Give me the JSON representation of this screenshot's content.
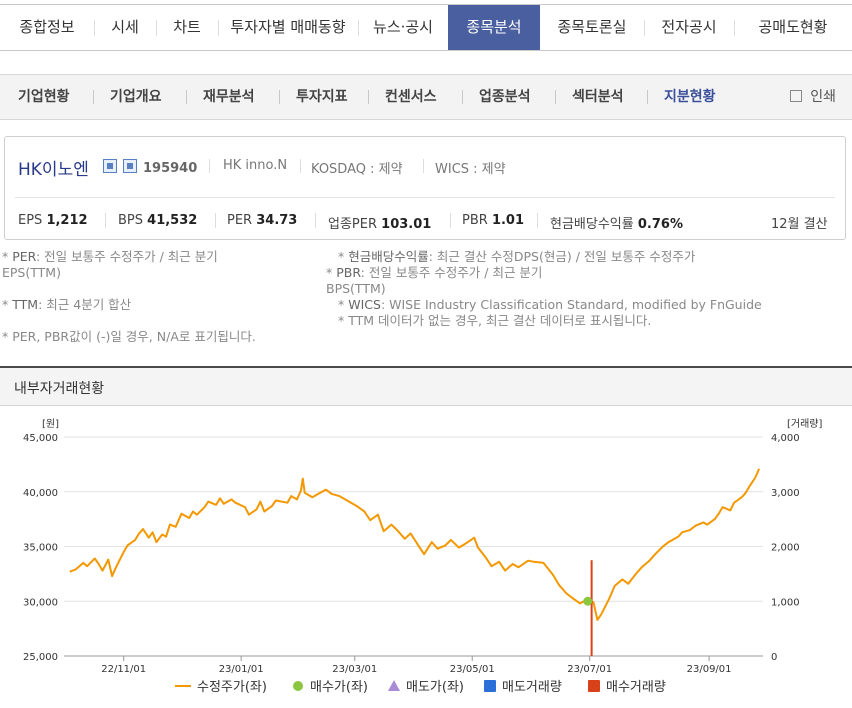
{
  "tabs": [
    {
      "label": "종합정보",
      "active": false
    },
    {
      "label": "시세",
      "active": false
    },
    {
      "label": "차트",
      "active": false
    },
    {
      "label": "투자자별 매매동향",
      "active": false
    },
    {
      "label": "뉴스·공시",
      "active": false
    },
    {
      "label": "종목분석",
      "active": true
    },
    {
      "label": "종목토론실",
      "active": false
    },
    {
      "label": "전자공시",
      "active": false
    },
    {
      "label": "공매도현황",
      "active": false
    }
  ],
  "subtabs": [
    {
      "label": "기업현황",
      "active": false
    },
    {
      "label": "기업개요",
      "active": false
    },
    {
      "label": "재무분석",
      "active": false
    },
    {
      "label": "투자지표",
      "active": false
    },
    {
      "label": "컨센서스",
      "active": false
    },
    {
      "label": "업종분석",
      "active": false
    },
    {
      "label": "섹터분석",
      "active": false
    },
    {
      "label": "지분현황",
      "active": true
    }
  ],
  "print_label": "인쇄",
  "company": {
    "name": "HK이노엔",
    "code": "195940",
    "eng": "HK inno.N",
    "market": "KOSDAQ : 제약",
    "wics": "WICS : 제약",
    "metrics": [
      {
        "label": "EPS",
        "value": "1,212"
      },
      {
        "label": "BPS",
        "value": "41,532"
      },
      {
        "label": "PER",
        "value": "34.73"
      },
      {
        "label": "업종PER",
        "value": "103.01"
      },
      {
        "label": "PBR",
        "value": "1.01"
      },
      {
        "label": "현금배당수익률",
        "value": "0.76%"
      }
    ],
    "fiscal": "12월 결산"
  },
  "notes": {
    "per_key": "PER",
    "per_text": ": 전일 보통주 수정주가 / 최근 분기",
    "per_text2": "EPS(TTM)",
    "div_key": "현금배당수익률",
    "div_text": ": 최근 결산 수정DPS(현금) / 전일 보통주 수정주가",
    "pbr_key": "PBR",
    "pbr_text": ": 전일 보통주 수정주가 / 최근 분기",
    "pbr_text2": "BPS(TTM)",
    "ttm_key": "TTM",
    "ttm_text": ": 최근 4분기 합산",
    "wics_key": "WICS",
    "wics_text": ": WISE Industry Classification Standard, modified by FnGuide",
    "ttm_note": "TTM 데이터가 없는 경우, 최근 결산 데이터로 표시됩니다.",
    "na_note": "PER, PBR값이 (-)일 경우, N/A로 표기됩니다."
  },
  "section_title": "내부자거래현황",
  "colors": {
    "price": "#f39800",
    "buy": "#8cc63f",
    "sell": "#a98bd6",
    "sellvol": "#2b70d8",
    "buyvol": "#d9411a",
    "accent": "#4a5f9f"
  },
  "chart_data": {
    "type": "line",
    "left_unit": "[원]",
    "right_unit": "[거래량]",
    "ylim": [
      25000,
      45000
    ],
    "y2lim": [
      0,
      4000
    ],
    "yticks": [
      "45,000",
      "40,000",
      "35,000",
      "30,000",
      "25,000"
    ],
    "y2ticks": [
      "4,000",
      "3,000",
      "2,000",
      "1,000",
      "0"
    ],
    "xticks": [
      "22/11/01",
      "23/01/01",
      "23/03/01",
      "23/05/01",
      "23/07/01",
      "23/09/01"
    ],
    "xrange": [
      "2022-10-01",
      "2023-09-29"
    ],
    "legend": [
      {
        "label": "수정주가(좌)",
        "kind": "line"
      },
      {
        "label": "매수가(좌)",
        "kind": "dot"
      },
      {
        "label": "매도가(좌)",
        "kind": "triangle"
      },
      {
        "label": "매도거래량",
        "kind": "square-blue"
      },
      {
        "label": "매수거래량",
        "kind": "square-red"
      }
    ],
    "series": [
      {
        "name": "수정주가(좌)",
        "points": [
          [
            "2022-10-04",
            32700
          ],
          [
            "2022-10-07",
            32900
          ],
          [
            "2022-10-11",
            33500
          ],
          [
            "2022-10-13",
            33200
          ],
          [
            "2022-10-17",
            33900
          ],
          [
            "2022-10-19",
            33400
          ],
          [
            "2022-10-21",
            32800
          ],
          [
            "2022-10-24",
            33800
          ],
          [
            "2022-10-26",
            32300
          ],
          [
            "2022-10-28",
            33100
          ],
          [
            "2022-11-01",
            34500
          ],
          [
            "2022-11-03",
            35100
          ],
          [
            "2022-11-07",
            35600
          ],
          [
            "2022-11-09",
            36200
          ],
          [
            "2022-11-11",
            36600
          ],
          [
            "2022-11-14",
            35800
          ],
          [
            "2022-11-16",
            36300
          ],
          [
            "2022-11-18",
            35400
          ],
          [
            "2022-11-21",
            36100
          ],
          [
            "2022-11-23",
            35900
          ],
          [
            "2022-11-25",
            37000
          ],
          [
            "2022-11-28",
            36800
          ],
          [
            "2022-12-01",
            38000
          ],
          [
            "2022-12-05",
            37600
          ],
          [
            "2022-12-07",
            38200
          ],
          [
            "2022-12-09",
            37900
          ],
          [
            "2022-12-13",
            38600
          ],
          [
            "2022-12-15",
            39100
          ],
          [
            "2022-12-19",
            38800
          ],
          [
            "2022-12-21",
            39400
          ],
          [
            "2022-12-23",
            38900
          ],
          [
            "2022-12-27",
            39300
          ],
          [
            "2022-12-29",
            39000
          ],
          [
            "2023-01-03",
            38600
          ],
          [
            "2023-01-05",
            37900
          ],
          [
            "2023-01-09",
            38400
          ],
          [
            "2023-01-11",
            39100
          ],
          [
            "2023-01-13",
            38200
          ],
          [
            "2023-01-17",
            38700
          ],
          [
            "2023-01-19",
            39200
          ],
          [
            "2023-01-25",
            39000
          ],
          [
            "2023-01-27",
            39600
          ],
          [
            "2023-01-30",
            39300
          ],
          [
            "2023-02-01",
            40100
          ],
          [
            "2023-02-02",
            41200
          ],
          [
            "2023-02-03",
            39900
          ],
          [
            "2023-02-07",
            39500
          ],
          [
            "2023-02-10",
            39800
          ],
          [
            "2023-02-14",
            40200
          ],
          [
            "2023-02-17",
            39800
          ],
          [
            "2023-02-21",
            39600
          ],
          [
            "2023-02-24",
            39300
          ],
          [
            "2023-03-02",
            38700
          ],
          [
            "2023-03-06",
            38200
          ],
          [
            "2023-03-09",
            37400
          ],
          [
            "2023-03-13",
            37900
          ],
          [
            "2023-03-16",
            36400
          ],
          [
            "2023-03-20",
            37000
          ],
          [
            "2023-03-23",
            36500
          ],
          [
            "2023-03-27",
            35700
          ],
          [
            "2023-03-30",
            36200
          ],
          [
            "2023-04-03",
            35100
          ],
          [
            "2023-04-06",
            34300
          ],
          [
            "2023-04-10",
            35400
          ],
          [
            "2023-04-13",
            34800
          ],
          [
            "2023-04-17",
            35100
          ],
          [
            "2023-04-20",
            35600
          ],
          [
            "2023-04-24",
            34900
          ],
          [
            "2023-04-27",
            35200
          ],
          [
            "2023-05-02",
            35800
          ],
          [
            "2023-05-04",
            34900
          ],
          [
            "2023-05-08",
            34000
          ],
          [
            "2023-05-11",
            33200
          ],
          [
            "2023-05-15",
            33600
          ],
          [
            "2023-05-18",
            32800
          ],
          [
            "2023-05-22",
            33400
          ],
          [
            "2023-05-25",
            33100
          ],
          [
            "2023-05-30",
            33700
          ],
          [
            "2023-06-02",
            33600
          ],
          [
            "2023-06-07",
            33500
          ],
          [
            "2023-06-12",
            32400
          ],
          [
            "2023-06-15",
            31500
          ],
          [
            "2023-06-19",
            30700
          ],
          [
            "2023-06-22",
            30300
          ],
          [
            "2023-06-26",
            29800
          ],
          [
            "2023-06-29",
            30100
          ],
          [
            "2023-07-03",
            29900
          ],
          [
            "2023-07-05",
            28300
          ],
          [
            "2023-07-07",
            28800
          ],
          [
            "2023-07-11",
            30200
          ],
          [
            "2023-07-14",
            31400
          ],
          [
            "2023-07-18",
            32000
          ],
          [
            "2023-07-21",
            31600
          ],
          [
            "2023-07-25",
            32500
          ],
          [
            "2023-07-28",
            33100
          ],
          [
            "2023-08-01",
            33700
          ],
          [
            "2023-08-04",
            34300
          ],
          [
            "2023-08-08",
            35000
          ],
          [
            "2023-08-11",
            35400
          ],
          [
            "2023-08-16",
            35900
          ],
          [
            "2023-08-18",
            36300
          ],
          [
            "2023-08-22",
            36500
          ],
          [
            "2023-08-25",
            36900
          ],
          [
            "2023-08-29",
            37200
          ],
          [
            "2023-08-31",
            37000
          ],
          [
            "2023-09-04",
            37500
          ],
          [
            "2023-09-06",
            38000
          ],
          [
            "2023-09-08",
            38600
          ],
          [
            "2023-09-12",
            38300
          ],
          [
            "2023-09-14",
            39000
          ],
          [
            "2023-09-18",
            39500
          ],
          [
            "2023-09-20",
            39900
          ],
          [
            "2023-09-22",
            40500
          ],
          [
            "2023-09-25",
            41300
          ],
          [
            "2023-09-27",
            42100
          ]
        ]
      },
      {
        "name": "매수가(좌)",
        "points": [
          [
            "2023-06-30",
            30000
          ]
        ]
      },
      {
        "name": "매수거래량",
        "points": [
          [
            "2023-07-02",
            1750
          ]
        ]
      }
    ]
  }
}
